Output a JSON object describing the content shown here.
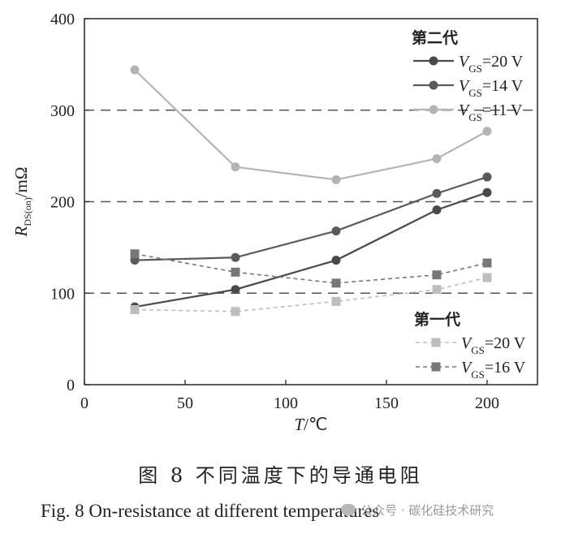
{
  "chart_data": {
    "type": "line",
    "xlabel": "T/℃",
    "ylabel_main": "R",
    "ylabel_sub": "DS(on)",
    "ylabel_unit": "/mΩ",
    "xlim": [
      0,
      225
    ],
    "ylim": [
      0,
      400
    ],
    "xticks": [
      0,
      50,
      100,
      150,
      200
    ],
    "yticks": [
      0,
      100,
      200,
      300,
      400
    ],
    "hgrid_dashed": [
      100,
      200,
      300
    ],
    "legend_groups": [
      {
        "title": "第二代",
        "entries": [
          {
            "prefix": "V",
            "sub": "GS",
            "value": "=20 V",
            "series": 0
          },
          {
            "prefix": "V",
            "sub": "GS",
            "value": "=14 V",
            "series": 1
          },
          {
            "prefix": "V",
            "sub": "GS",
            "value": "=11 V",
            "series": 2
          }
        ]
      },
      {
        "title": "第一代",
        "entries": [
          {
            "prefix": "V",
            "sub": "GS",
            "value": "=20 V",
            "series": 3
          },
          {
            "prefix": "V",
            "sub": "GS",
            "value": "=16 V",
            "series": 4
          }
        ]
      }
    ],
    "series": [
      {
        "generation": "第二代",
        "x": [
          25,
          75,
          125,
          175,
          200
        ],
        "y": [
          85,
          104,
          136,
          191,
          210
        ],
        "color": "#4a4a4a",
        "marker": "circle",
        "dash": "solid"
      },
      {
        "generation": "第二代",
        "x": [
          25,
          75,
          125,
          175,
          200
        ],
        "y": [
          136,
          139,
          168,
          209,
          227
        ],
        "color": "#5a5a5a",
        "marker": "circle",
        "dash": "solid"
      },
      {
        "generation": "第二代",
        "x": [
          25,
          75,
          125,
          175,
          200
        ],
        "y": [
          344,
          238,
          224,
          247,
          277
        ],
        "color": "#b4b4b4",
        "marker": "circle",
        "dash": "solid"
      },
      {
        "generation": "第一代",
        "x": [
          25,
          75,
          125,
          175,
          200
        ],
        "y": [
          82,
          80,
          91,
          104,
          117
        ],
        "color": "#bdbdbd",
        "marker": "square",
        "dash": "dashed"
      },
      {
        "generation": "第一代",
        "x": [
          25,
          75,
          125,
          175,
          200
        ],
        "y": [
          143,
          123,
          111,
          120,
          133
        ],
        "color": "#777777",
        "marker": "square",
        "dash": "dashed"
      }
    ]
  },
  "caption": {
    "cn": "图 8  不同温度下的导通电阻",
    "en": "Fig. 8   On-resistance at different temperatures"
  },
  "watermark": "公众号 · 碳化硅技术研究"
}
